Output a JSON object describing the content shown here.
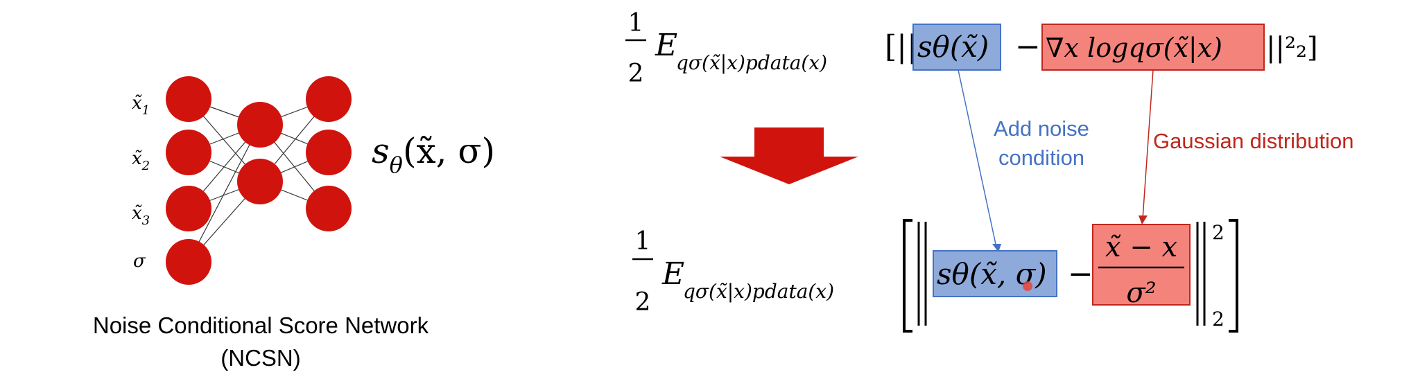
{
  "network": {
    "input_labels": [
      "x̃",
      "x̃",
      "x̃",
      "σ"
    ],
    "input_subscripts": [
      "1",
      "2",
      "3",
      ""
    ],
    "output_label_s": "s",
    "output_label_theta": "θ",
    "output_label_args": "(x̃, σ)",
    "caption_line1": "Noise Conditional Score Network",
    "caption_line2": "(NCSN)",
    "node_color": "#d0140d",
    "edge_color": "#333333"
  },
  "arrow": {
    "color": "#d0140d"
  },
  "equation_top": {
    "half_num": "1",
    "half_den": "2",
    "expect": "E",
    "expect_sub": "qσ(x̃|x)pdata(x)",
    "open": "[||",
    "score": "sθ(x̃)",
    "minus": "−",
    "gradient": "∇x logqσ(x̃|x)",
    "close": "||²₂]",
    "score_box_color": "#8eaadb",
    "grad_box_color": "#f4837c"
  },
  "equation_bottom": {
    "half_num": "1",
    "half_den": "2",
    "expect": "E",
    "expect_sub": "qσ(x̃|x)pdata(x)",
    "score": "sθ(x̃, σ)",
    "minus": "−",
    "frac_num": "x̃ − x",
    "frac_den": "σ²",
    "sup": "2",
    "sub": "2"
  },
  "annotations": {
    "blue_label_line1": "Add noise",
    "blue_label_line2": "condition",
    "blue_color": "#4472c4",
    "red_label": "Gaussian distribution",
    "red_color": "#c0261c"
  }
}
